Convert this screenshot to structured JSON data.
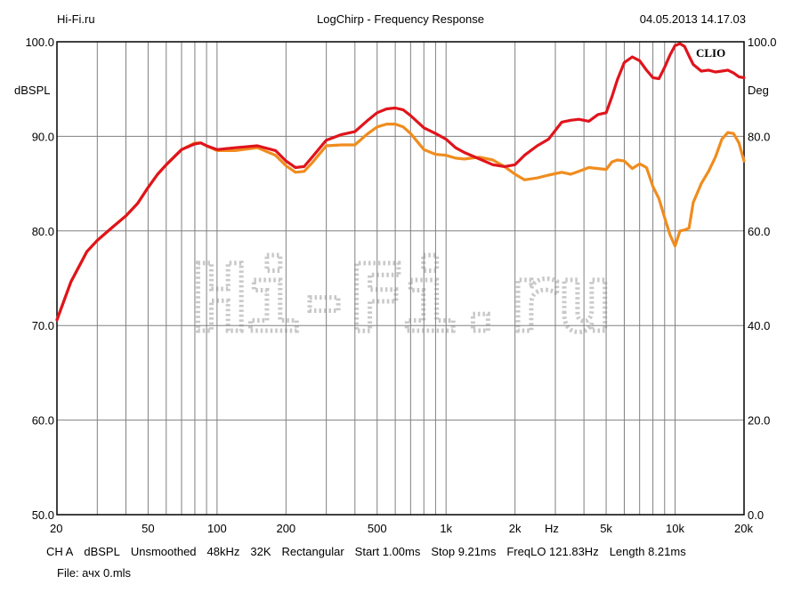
{
  "header": {
    "site": "Hi-Fi.ru",
    "title": "LogChirp - Frequency Response",
    "datetime": "04.05.2013 14.17.03"
  },
  "chart_data": {
    "type": "line",
    "title": "LogChirp - Frequency Response",
    "xscale": "log",
    "xlim": [
      20,
      20000
    ],
    "ylim": [
      50,
      100
    ],
    "y2lim": [
      0,
      100
    ],
    "ylabel": "dBSPL",
    "y2label": "Deg",
    "xunit_label": "Hz",
    "grid": true,
    "x_tick_labels": [
      {
        "v": 20,
        "t": "20"
      },
      {
        "v": 50,
        "t": "50"
      },
      {
        "v": 100,
        "t": "100"
      },
      {
        "v": 200,
        "t": "200"
      },
      {
        "v": 500,
        "t": "500"
      },
      {
        "v": 1000,
        "t": "1k"
      },
      {
        "v": 2000,
        "t": "2k"
      },
      {
        "v": 5000,
        "t": "5k"
      },
      {
        "v": 10000,
        "t": "10k"
      },
      {
        "v": 20000,
        "t": "20k"
      }
    ],
    "y_tick_labels": [
      {
        "v": 100,
        "t": "100.0"
      },
      {
        "v": 90,
        "t": "90.0"
      },
      {
        "v": 80,
        "t": "80.0"
      },
      {
        "v": 70,
        "t": "70.0"
      },
      {
        "v": 60,
        "t": "60.0"
      },
      {
        "v": 50,
        "t": "50.0"
      }
    ],
    "y2_tick_labels": [
      {
        "v": 100,
        "t": "100.0"
      },
      {
        "v": 80,
        "t": "80.0"
      },
      {
        "v": 60,
        "t": "60.0"
      },
      {
        "v": 40,
        "t": "40.0"
      },
      {
        "v": 20,
        "t": "20.0"
      },
      {
        "v": 0,
        "t": "0.0"
      }
    ],
    "brand_label": "CLIO",
    "watermark": "Hi-Fi.ru",
    "series": [
      {
        "color": "#e0141c",
        "x": [
          20,
          23,
          27,
          30,
          35,
          40,
          45,
          50,
          55,
          60,
          70,
          80,
          85,
          90,
          100,
          120,
          150,
          180,
          200,
          220,
          240,
          260,
          300,
          350,
          400,
          450,
          500,
          550,
          600,
          650,
          700,
          800,
          900,
          1000,
          1100,
          1200,
          1400,
          1600,
          1800,
          2000,
          2200,
          2500,
          2800,
          3200,
          3500,
          3800,
          4200,
          4600,
          5000,
          5300,
          5600,
          6000,
          6500,
          7000,
          7500,
          8000,
          8500,
          9000,
          9500,
          10000,
          10500,
          11000,
          11500,
          12000,
          13000,
          14000,
          15000,
          16000,
          17000,
          18000,
          19000,
          20000
        ],
        "y": [
          70.6,
          74.6,
          77.8,
          79.0,
          80.4,
          81.6,
          82.9,
          84.6,
          86.0,
          87.0,
          88.6,
          89.2,
          89.3,
          89.0,
          88.6,
          88.8,
          89.0,
          88.5,
          87.4,
          86.7,
          86.8,
          87.8,
          89.6,
          90.2,
          90.5,
          91.6,
          92.5,
          92.9,
          93.0,
          92.8,
          92.2,
          90.9,
          90.3,
          89.7,
          88.8,
          88.3,
          87.6,
          87.0,
          86.8,
          87.0,
          88.0,
          89.0,
          89.7,
          91.5,
          91.7,
          91.8,
          91.6,
          92.3,
          92.5,
          94.2,
          96.0,
          97.8,
          98.4,
          98.0,
          97.0,
          96.2,
          96.1,
          97.3,
          98.6,
          99.6,
          99.8,
          99.5,
          98.5,
          97.6,
          96.9,
          97.0,
          96.8,
          96.9,
          97.0,
          96.7,
          96.3,
          96.2
        ]
      },
      {
        "color": "#f08c1e",
        "x": [
          20,
          23,
          27,
          30,
          35,
          40,
          45,
          50,
          55,
          60,
          70,
          80,
          85,
          90,
          100,
          120,
          150,
          180,
          200,
          220,
          240,
          260,
          300,
          350,
          400,
          450,
          500,
          550,
          600,
          650,
          700,
          800,
          900,
          1000,
          1100,
          1200,
          1400,
          1600,
          1800,
          2000,
          2200,
          2500,
          2800,
          3200,
          3500,
          3800,
          4200,
          4600,
          5000,
          5300,
          5600,
          6000,
          6500,
          7000,
          7500,
          8000,
          8500,
          9000,
          9500,
          10000,
          10500,
          11000,
          11500,
          12000,
          13000,
          14000,
          15000,
          16000,
          17000,
          18000,
          19000,
          20000
        ],
        "y": [
          70.6,
          74.6,
          77.8,
          79.0,
          80.4,
          81.6,
          82.9,
          84.6,
          86.0,
          87.0,
          88.6,
          89.3,
          89.3,
          89.0,
          88.5,
          88.5,
          88.8,
          88.0,
          86.9,
          86.2,
          86.3,
          87.2,
          89.0,
          89.1,
          89.1,
          90.2,
          91.0,
          91.3,
          91.3,
          91.0,
          90.3,
          88.6,
          88.1,
          88.0,
          87.7,
          87.6,
          87.8,
          87.5,
          86.8,
          86.0,
          85.4,
          85.6,
          85.9,
          86.2,
          86.0,
          86.3,
          86.7,
          86.6,
          86.5,
          87.3,
          87.5,
          87.4,
          86.6,
          87.1,
          86.7,
          84.7,
          83.4,
          81.4,
          79.6,
          78.4,
          80.0,
          80.1,
          80.3,
          83.0,
          85.0,
          86.3,
          87.8,
          89.7,
          90.4,
          90.3,
          89.3,
          87.4
        ]
      }
    ]
  },
  "footer": {
    "items": [
      "CH A",
      "dBSPL",
      "Unsmoothed",
      "48kHz",
      "32K",
      "Rectangular",
      "Start 1.00ms",
      "Stop 9.21ms",
      "FreqLO 121.83Hz",
      "Length 8.21ms"
    ],
    "file": "File: ачх 0.mls"
  }
}
